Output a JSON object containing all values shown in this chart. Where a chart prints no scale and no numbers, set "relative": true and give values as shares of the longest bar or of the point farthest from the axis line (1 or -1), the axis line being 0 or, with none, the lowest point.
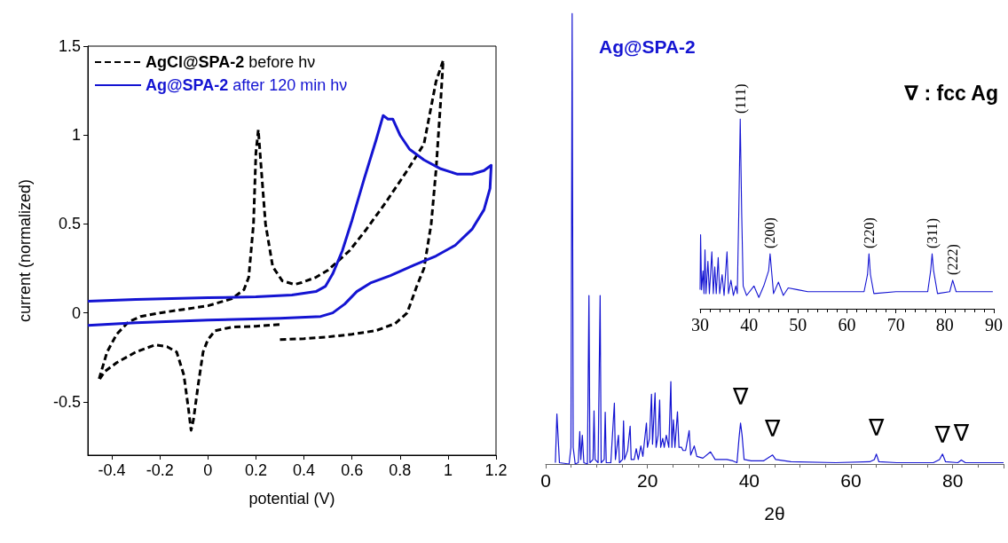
{
  "chart_data": [
    {
      "type": "line",
      "xlabel": "potential (V)",
      "ylabel": "current (normalized)",
      "xlim": [
        -0.5,
        1.2
      ],
      "ylim": [
        -0.8,
        1.5
      ],
      "xticks": [
        -0.4,
        -0.2,
        0,
        0.2,
        0.4,
        0.6,
        0.8,
        1,
        1.2
      ],
      "yticks": [
        -0.5,
        0,
        0.5,
        1,
        1.5
      ],
      "grid": false,
      "legend": "top left",
      "marker": "none",
      "series": [
        {
          "name": "AgCl@SPA-2 before hν",
          "color": "#000000",
          "line_style": "dashed",
          "x": [
            0.3,
            0.4,
            0.5,
            0.6,
            0.7,
            0.78,
            0.83,
            0.87,
            0.9,
            0.93,
            0.95,
            0.97,
            0.98,
            0.95,
            0.9,
            0.83,
            0.74,
            0.66,
            0.59,
            0.5,
            0.45,
            0.39,
            0.36,
            0.31,
            0.27,
            0.24,
            0.22,
            0.21,
            0.2,
            0.19,
            0.17,
            0.15,
            0.1,
            0.05,
            0,
            -0.1,
            -0.2,
            -0.28,
            -0.33,
            -0.38,
            -0.42,
            -0.455,
            -0.43,
            -0.38,
            -0.3,
            -0.22,
            -0.17,
            -0.13,
            -0.1,
            -0.08,
            -0.07,
            -0.06,
            -0.04,
            -0.02,
            0,
            0.03,
            0.1,
            0.2,
            0.3
          ],
          "values": [
            -0.15,
            -0.145,
            -0.135,
            -0.12,
            -0.1,
            -0.06,
            0,
            0.15,
            0.25,
            0.5,
            0.8,
            1.2,
            1.42,
            1.3,
            0.95,
            0.8,
            0.62,
            0.47,
            0.35,
            0.24,
            0.2,
            0.17,
            0.16,
            0.18,
            0.26,
            0.5,
            0.85,
            1.03,
            0.9,
            0.5,
            0.2,
            0.13,
            0.08,
            0.06,
            0.04,
            0.02,
            0,
            -0.02,
            -0.05,
            -0.12,
            -0.22,
            -0.38,
            -0.33,
            -0.28,
            -0.22,
            -0.18,
            -0.19,
            -0.22,
            -0.35,
            -0.55,
            -0.66,
            -0.6,
            -0.4,
            -0.22,
            -0.15,
            -0.1,
            -0.08,
            -0.075,
            -0.065
          ]
        },
        {
          "name": "Ag@SPA-2 after 120 min hν",
          "color": "#1414d2",
          "line_style": "solid",
          "x": [
            -0.5,
            -0.3,
            0,
            0.2,
            0.35,
            0.45,
            0.49,
            0.52,
            0.56,
            0.6,
            0.65,
            0.7,
            0.73,
            0.75,
            0.77,
            0.8,
            0.84,
            0.9,
            0.97,
            1.04,
            1.1,
            1.15,
            1.18,
            1.175,
            1.15,
            1.1,
            1.03,
            0.95,
            0.86,
            0.76,
            0.68,
            0.62,
            0.57,
            0.52,
            0.47,
            0.3,
            0,
            -0.3,
            -0.5
          ],
          "values": [
            0.065,
            0.075,
            0.085,
            0.09,
            0.1,
            0.12,
            0.15,
            0.22,
            0.35,
            0.52,
            0.75,
            0.97,
            1.11,
            1.09,
            1.09,
            1,
            0.92,
            0.86,
            0.81,
            0.78,
            0.78,
            0.8,
            0.83,
            0.7,
            0.58,
            0.47,
            0.38,
            0.32,
            0.27,
            0.21,
            0.17,
            0.12,
            0.05,
            0,
            -0.02,
            -0.03,
            -0.04,
            -0.055,
            -0.07
          ]
        }
      ]
    },
    {
      "type": "line",
      "relative": true,
      "xlabel": "2θ",
      "xlim": [
        0,
        90
      ],
      "xticks": [
        0,
        20,
        40,
        60,
        80
      ],
      "tick_labels": "x",
      "grid": false,
      "legend": false,
      "marker": "none",
      "annotations": [
        "∇ : fcc Ag",
        {
          "text": "∇",
          "x": 38.3,
          "y": 0.091
        },
        {
          "text": "∇",
          "x": 44.6,
          "y": 0.02
        },
        {
          "text": "∇",
          "x": 65,
          "y": 0.022
        },
        {
          "text": "∇",
          "x": 78,
          "y": 0.005
        },
        {
          "text": "∇",
          "x": 81.7,
          "y": 0.009
        }
      ],
      "series": [
        {
          "name": "Ag@SPA-2",
          "color": "#1414d2",
          "x": [
            1.9,
            2.2,
            2.7,
            4.6,
            4.96,
            5.2,
            5.4,
            5.8,
            6.4,
            6.7,
            6.9,
            7.2,
            7.5,
            8.2,
            8.5,
            8.7,
            9.3,
            9.5,
            9.7,
            10.3,
            10.7,
            10.9,
            11.5,
            11.7,
            11.9,
            12.8,
            13.5,
            13.7,
            14.3,
            14.5,
            15.1,
            15.3,
            15.5,
            16.1,
            16.6,
            16.8,
            17.4,
            17.8,
            18.2,
            18.7,
            19.1,
            19.8,
            20,
            20.4,
            20.8,
            21,
            21.5,
            21.7,
            22.1,
            22.4,
            22.6,
            23,
            23.3,
            23.7,
            24.2,
            24.6,
            24.8,
            25.1,
            25.4,
            25.9,
            26.2,
            26.7,
            27,
            27.5,
            28.2,
            28.5,
            29.2,
            29.7,
            30.9,
            32.4,
            33.3,
            35.6,
            36.8,
            37.6,
            38,
            38.3,
            38.6,
            39,
            40.4,
            42.8,
            44.6,
            45.2,
            48.2,
            57,
            63.7,
            64.6,
            65,
            65.5,
            69,
            76.2,
            77.4,
            78,
            78.6,
            81,
            81.7,
            82.5,
            90
          ],
          "values": [
            0.003,
            0.111,
            0.003,
            0,
            0.037,
            1,
            0.037,
            0,
            0.003,
            0.072,
            0.01,
            0.064,
            0.003,
            0,
            0.374,
            0.003,
            0.01,
            0.118,
            0.01,
            0.003,
            0.374,
            0.003,
            0.01,
            0.115,
            0.003,
            0.003,
            0.135,
            0.01,
            0.064,
            0.003,
            0.01,
            0.096,
            0.01,
            0.03,
            0.084,
            0.01,
            0.01,
            0.034,
            0.01,
            0.04,
            0.017,
            0.091,
            0.037,
            0.057,
            0.155,
            0.044,
            0.158,
            0.037,
            0.064,
            0.142,
            0.037,
            0.057,
            0.037,
            0.064,
            0.037,
            0.183,
            0.037,
            0.098,
            0.037,
            0.116,
            0.037,
            0.037,
            0.03,
            0.03,
            0.074,
            0.02,
            0.04,
            0.017,
            0.013,
            0.027,
            0.01,
            0.01,
            0.007,
            0.003,
            0.057,
            0.091,
            0.064,
            0.01,
            0.007,
            0.007,
            0.02,
            0.01,
            0.005,
            0.003,
            0.005,
            0.01,
            0.022,
            0.005,
            0.003,
            0.003,
            0.01,
            0.022,
            0.005,
            0.003,
            0.009,
            0.003,
            0.003
          ]
        }
      ]
    },
    {
      "type": "line",
      "relative": true,
      "xlim": [
        30,
        90
      ],
      "xticks": [
        30,
        40,
        50,
        60,
        70,
        80,
        90
      ],
      "tick_labels": "x",
      "grid": false,
      "legend": false,
      "marker": "none",
      "annotations": [
        {
          "text": "(111)",
          "x": 38.2,
          "y": 1
        },
        {
          "text": "(200)",
          "x": 44.3,
          "y": 0.29
        },
        {
          "text": "(220)",
          "x": 64.5,
          "y": 0.29
        },
        {
          "text": "(311)",
          "x": 77.4,
          "y": 0.29
        },
        {
          "text": "(222)",
          "x": 81.6,
          "y": 0.15
        }
      ],
      "series": [
        {
          "color": "#1414d2",
          "x": [
            30,
            30.1,
            30.3,
            30.6,
            30.8,
            31,
            31.2,
            31.6,
            31.9,
            32.4,
            32.7,
            33,
            33.3,
            33.7,
            34,
            34.5,
            34.9,
            35.5,
            35.8,
            36.3,
            36.8,
            37.3,
            37.6,
            37.9,
            38.2,
            38.5,
            38.8,
            39.5,
            41,
            42,
            43,
            44,
            44.3,
            44.6,
            45,
            46,
            47,
            48,
            50,
            52,
            55,
            60,
            63.5,
            64.2,
            64.5,
            64.8,
            65.5,
            70,
            76.5,
            77.1,
            77.4,
            77.7,
            78.5,
            81,
            81.6,
            82.3,
            85,
            89.8
          ],
          "values": [
            0.1,
            0.39,
            0.1,
            0.2,
            0.08,
            0.31,
            0.08,
            0.25,
            0.08,
            0.3,
            0.08,
            0.22,
            0.08,
            0.27,
            0.08,
            0.18,
            0.07,
            0.3,
            0.08,
            0.15,
            0.07,
            0.12,
            0.08,
            0.5,
            1,
            0.5,
            0.12,
            0.07,
            0.12,
            0.06,
            0.12,
            0.2,
            0.29,
            0.2,
            0.08,
            0.14,
            0.07,
            0.11,
            0.1,
            0.09,
            0.09,
            0.09,
            0.09,
            0.18,
            0.29,
            0.18,
            0.08,
            0.09,
            0.09,
            0.2,
            0.29,
            0.2,
            0.08,
            0.09,
            0.15,
            0.09,
            0.09,
            0.09
          ]
        }
      ]
    }
  ]
}
